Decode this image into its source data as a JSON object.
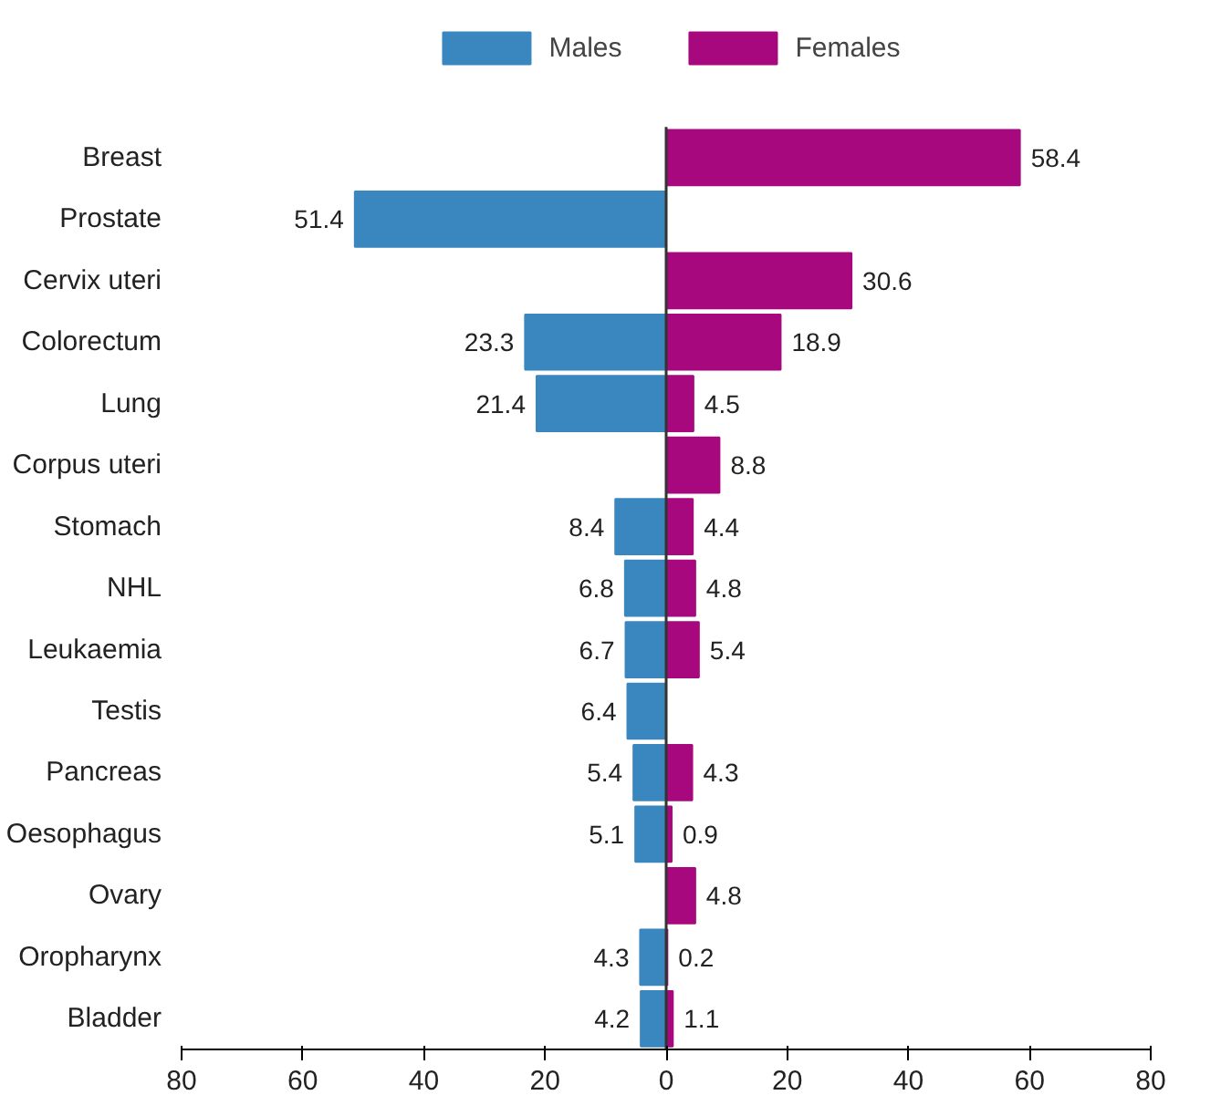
{
  "chart_data": {
    "type": "bar",
    "orientation": "horizontal",
    "categories": [
      "Breast",
      "Prostate",
      "Cervix uteri",
      "Colorectum",
      "Lung",
      "Corpus uteri",
      "Stomach",
      "NHL",
      "Leukaemia",
      "Testis",
      "Pancreas",
      "Oesophagus",
      "Ovary",
      "Oropharynx",
      "Bladder"
    ],
    "series": [
      {
        "name": "Males",
        "color": "#3a87c0",
        "values": [
          null,
          51.4,
          null,
          23.3,
          21.4,
          null,
          8.4,
          6.8,
          6.7,
          6.4,
          5.4,
          5.1,
          null,
          4.3,
          4.2
        ],
        "base": [
          null,
          -51.4,
          null,
          -23.3,
          -21.4,
          null,
          -8.4,
          -6.8,
          -6.7,
          -6.4,
          -5.4,
          -5.1,
          null,
          -4.3,
          -4.2
        ],
        "value_labels": [
          null,
          "51.4",
          null,
          "23.3",
          "21.4",
          null,
          "8.4",
          "6.8",
          "6.7",
          "6.4",
          "5.4",
          "5.1",
          null,
          "4.3",
          "4.2"
        ]
      },
      {
        "name": "Females",
        "color": "#a8087e",
        "values": [
          58.4,
          null,
          30.6,
          18.9,
          4.5,
          8.8,
          4.4,
          4.8,
          5.4,
          null,
          4.3,
          0.9,
          4.8,
          0.2,
          1.1
        ],
        "value_labels": [
          "58.4",
          null,
          "30.6",
          "18.9",
          "4.5",
          "8.8",
          "4.4",
          "4.8",
          "5.4",
          null,
          "4.3",
          "0.9",
          "4.8",
          "0.2",
          "1.1"
        ]
      }
    ],
    "xlim": [
      -80,
      80
    ],
    "xticks": [
      {
        "value": -80,
        "label": "80"
      },
      {
        "value": -60,
        "label": "60"
      },
      {
        "value": -40,
        "label": "40"
      },
      {
        "value": -20,
        "label": "20"
      },
      0,
      20,
      40,
      60,
      80
    ],
    "ref_lines": [
      {
        "axis": "x",
        "value": 0,
        "color": "#333333"
      }
    ],
    "legend": "top",
    "grid": false
  }
}
